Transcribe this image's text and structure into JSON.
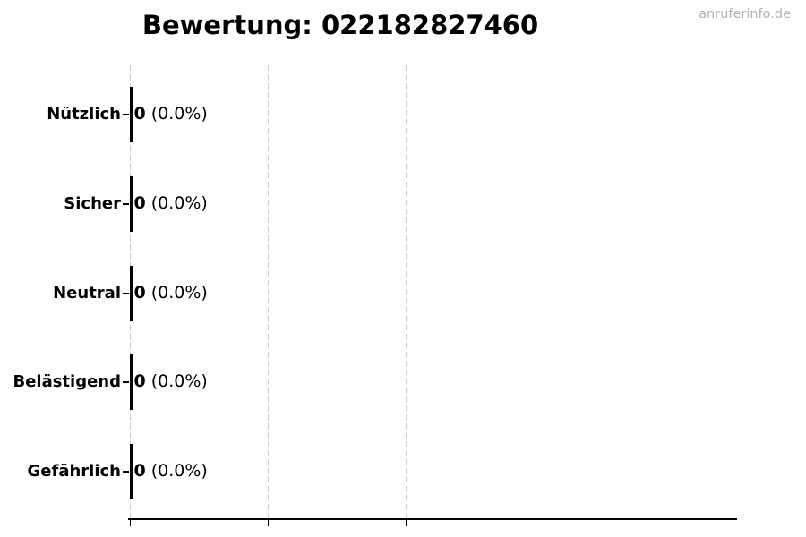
{
  "title": "Bewertung: 022182827460",
  "watermark": "anruferinfo.de",
  "rows": [
    {
      "label": "Nützlich",
      "count": "0",
      "percent": "(0.0%)"
    },
    {
      "label": "Sicher",
      "count": "0",
      "percent": "(0.0%)"
    },
    {
      "label": "Neutral",
      "count": "0",
      "percent": "(0.0%)"
    },
    {
      "label": "Belästigend",
      "count": "0",
      "percent": "(0.0%)"
    },
    {
      "label": "Gefährlich",
      "count": "0",
      "percent": "(0.0%)"
    }
  ],
  "chart_data": {
    "type": "bar",
    "orientation": "horizontal",
    "title": "Bewertung: 022182827460",
    "categories": [
      "Nützlich",
      "Sicher",
      "Neutral",
      "Belästigend",
      "Gefährlich"
    ],
    "values": [
      0,
      0,
      0,
      0,
      0
    ],
    "value_labels": [
      "0 (0.0%)",
      "0 (0.0%)",
      "0 (0.0%)",
      "0 (0.0%)",
      "0 (0.0%)"
    ],
    "xlabel": "",
    "ylabel": "",
    "x_tick_labels": [],
    "x_gridline_count": 5,
    "grid": "vertical-dashed",
    "legend": "none",
    "watermark": "anruferinfo.de",
    "colors": {
      "bar_edge": "#000000",
      "gridline": "#cccccc",
      "axis": "#000000",
      "text": "#000000",
      "watermark": "#b2b2b2",
      "background": "#ffffff"
    }
  }
}
